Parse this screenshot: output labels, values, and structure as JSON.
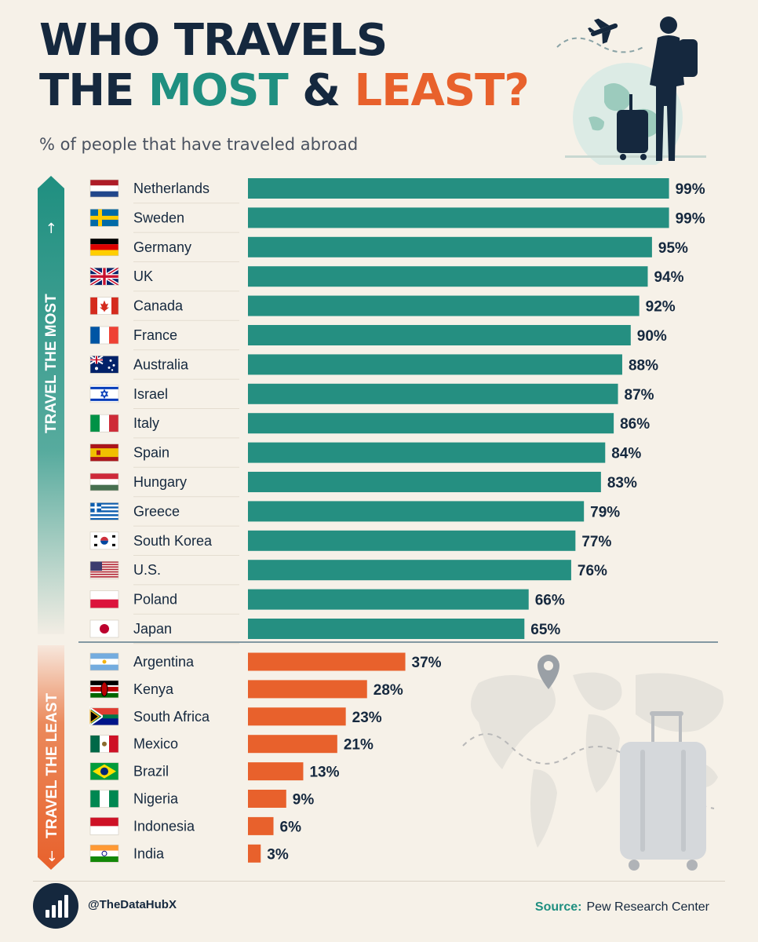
{
  "header": {
    "title_line1": "WHO TRAVELS",
    "title_the": "THE ",
    "title_most": "MOST",
    "title_amp": " & ",
    "title_least": "LEAST?",
    "subtitle": "% of people that have traveled abroad"
  },
  "side_labels": {
    "most": "TRAVEL THE MOST",
    "least": "TRAVEL THE LEAST"
  },
  "colors": {
    "most": "#258f81",
    "least": "#e8612c",
    "navy": "#15283e"
  },
  "chart_data": {
    "type": "bar",
    "orientation": "horizontal",
    "value_suffix": "%",
    "xlim": [
      0,
      100
    ],
    "groups": [
      {
        "label": "TRAVEL THE MOST",
        "categories": [
          "Netherlands",
          "Sweden",
          "Germany",
          "UK",
          "Canada",
          "France",
          "Australia",
          "Israel",
          "Italy",
          "Spain",
          "Hungary",
          "Greece",
          "South Korea",
          "U.S.",
          "Poland",
          "Japan"
        ],
        "flags": [
          "nl",
          "se",
          "de",
          "gb",
          "ca",
          "fr",
          "au",
          "il",
          "it",
          "es",
          "hu",
          "gr",
          "kr",
          "us",
          "pl",
          "jp"
        ],
        "values": [
          99,
          99,
          95,
          94,
          92,
          90,
          88,
          87,
          86,
          84,
          83,
          79,
          77,
          76,
          66,
          65
        ]
      },
      {
        "label": "TRAVEL THE LEAST",
        "categories": [
          "Argentina",
          "Kenya",
          "South Africa",
          "Mexico",
          "Brazil",
          "Nigeria",
          "Indonesia",
          "India"
        ],
        "flags": [
          "ar",
          "ke",
          "za",
          "mx",
          "br",
          "ng",
          "id",
          "in"
        ],
        "values": [
          37,
          28,
          23,
          21,
          13,
          9,
          6,
          3
        ]
      }
    ]
  },
  "footer": {
    "handle": "@TheDataHubX",
    "source_label": "Source:",
    "source_value": "Pew Research Center"
  },
  "icons": {
    "hero": "traveler-with-globe-illustration",
    "map": "world-map-suitcase-illustration",
    "logo": "bar-chart-logo-icon"
  }
}
